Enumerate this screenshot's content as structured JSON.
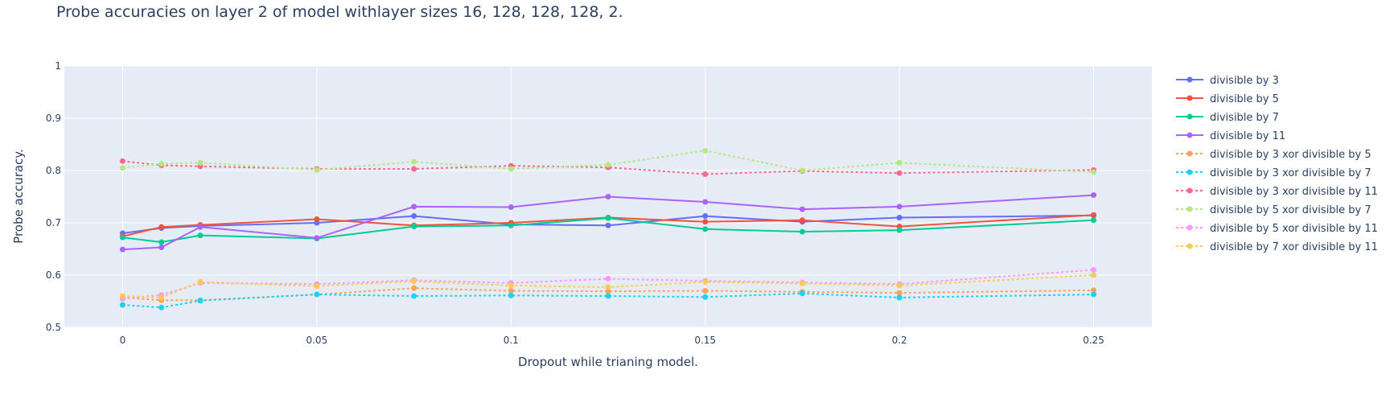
{
  "chart_data": {
    "type": "line",
    "title": "Probe accuracies on layer 2 of model withlayer sizes 16, 128, 128, 128, 2.",
    "xlabel": "Dropout while trianing model.",
    "ylabel": "Probe accuracy.",
    "xlim": [
      -0.015,
      0.265
    ],
    "ylim": [
      0.5,
      1.0
    ],
    "x_ticks": [
      0,
      0.05,
      0.1,
      0.15,
      0.2,
      0.25
    ],
    "x_tick_labels": [
      "0",
      "0.05",
      "0.1",
      "0.15",
      "0.2",
      "0.25"
    ],
    "y_ticks": [
      0.5,
      0.6,
      0.7,
      0.8,
      0.9,
      1
    ],
    "y_tick_labels": [
      "0.5",
      "0.6",
      "0.7",
      "0.8",
      "0.9",
      "1"
    ],
    "grid": true,
    "legend_position": "right",
    "x": [
      0,
      0.01,
      0.02,
      0.05,
      0.075,
      0.1,
      0.125,
      0.15,
      0.175,
      0.2,
      0.25
    ],
    "series": [
      {
        "name": "divisible by 3",
        "color": "#636efa",
        "dash": "solid",
        "values": [
          0.68,
          0.69,
          0.694,
          0.7,
          0.713,
          0.697,
          0.695,
          0.713,
          0.702,
          0.71,
          0.714
        ]
      },
      {
        "name": "divisible by 5",
        "color": "#ef553b",
        "dash": "solid",
        "values": [
          0.674,
          0.692,
          0.696,
          0.707,
          0.695,
          0.7,
          0.71,
          0.702,
          0.705,
          0.693,
          0.715
        ]
      },
      {
        "name": "divisible by 7",
        "color": "#00cc96",
        "dash": "solid",
        "values": [
          0.672,
          0.663,
          0.676,
          0.67,
          0.693,
          0.695,
          0.709,
          0.688,
          0.683,
          0.686,
          0.705
        ]
      },
      {
        "name": "divisible by 11",
        "color": "#ab63fa",
        "dash": "solid",
        "values": [
          0.649,
          0.653,
          0.692,
          0.671,
          0.731,
          0.73,
          0.75,
          0.74,
          0.726,
          0.731,
          0.753
        ]
      },
      {
        "name": "divisible by 3 xor divisible by 5",
        "color": "#ffa15a",
        "dash": "dot",
        "values": [
          0.557,
          0.552,
          0.552,
          0.563,
          0.575,
          0.57,
          0.569,
          0.57,
          0.568,
          0.566,
          0.571
        ]
      },
      {
        "name": "divisible by 3 xor divisible by 7",
        "color": "#19d3f3",
        "dash": "dot",
        "values": [
          0.543,
          0.538,
          0.551,
          0.563,
          0.56,
          0.561,
          0.56,
          0.558,
          0.565,
          0.557,
          0.563
        ]
      },
      {
        "name": "divisible by 3 xor divisible by 11",
        "color": "#ff6692",
        "dash": "dot",
        "values": [
          0.818,
          0.81,
          0.808,
          0.803,
          0.803,
          0.809,
          0.806,
          0.793,
          0.799,
          0.795,
          0.801
        ]
      },
      {
        "name": "divisible by 5 xor divisible by 7",
        "color": "#b6e880",
        "dash": "dot",
        "values": [
          0.805,
          0.813,
          0.815,
          0.801,
          0.817,
          0.803,
          0.811,
          0.838,
          0.8,
          0.815,
          0.797
        ]
      },
      {
        "name": "divisible by 5 xor divisible by 11",
        "color": "#ff97ff",
        "dash": "dot",
        "values": [
          0.555,
          0.562,
          0.585,
          0.583,
          0.59,
          0.585,
          0.593,
          0.589,
          0.586,
          0.583,
          0.61
        ]
      },
      {
        "name": "divisible by 7 xor divisible by 11",
        "color": "#fecb52",
        "dash": "dot",
        "values": [
          0.56,
          0.557,
          0.587,
          0.579,
          0.588,
          0.58,
          0.577,
          0.587,
          0.584,
          0.58,
          0.6
        ]
      }
    ]
  }
}
